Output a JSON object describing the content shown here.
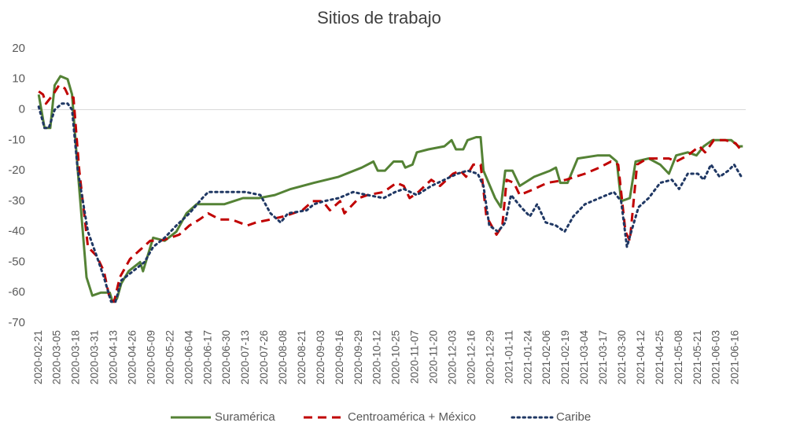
{
  "chart_data": {
    "type": "line",
    "title": "Sitios de trabajo",
    "xlim": [
      "2020-02-16",
      "2021-06-23"
    ],
    "ylim": [
      -70,
      20
    ],
    "yticks": [
      -70,
      -60,
      -50,
      -40,
      -30,
      -20,
      -10,
      0,
      10,
      20
    ],
    "xticks": [
      "2020-02-21",
      "2020-03-05",
      "2020-03-18",
      "2020-03-31",
      "2020-04-13",
      "2020-04-26",
      "2020-05-09",
      "2020-05-22",
      "2020-06-04",
      "2020-06-17",
      "2020-06-30",
      "2020-07-13",
      "2020-07-26",
      "2020-08-08",
      "2020-08-21",
      "2020-09-03",
      "2020-09-16",
      "2020-09-29",
      "2020-10-12",
      "2020-10-25",
      "2020-11-07",
      "2020-11-20",
      "2020-12-03",
      "2020-12-16",
      "2020-12-29",
      "2021-01-11",
      "2021-01-24",
      "2021-02-06",
      "2021-02-19",
      "2021-03-04",
      "2021-03-17",
      "2021-03-30",
      "2021-04-12",
      "2021-04-25",
      "2021-05-08",
      "2021-05-21",
      "2021-06-03",
      "2021-06-16"
    ],
    "legend": "bottom",
    "series": [
      {
        "name": "Suramérica",
        "color": "#548235",
        "dash": "solid",
        "x": [
          "2020-02-21",
          "2020-02-25",
          "2020-02-29",
          "2020-03-03",
          "2020-03-07",
          "2020-03-12",
          "2020-03-15",
          "2020-03-19",
          "2020-03-25",
          "2020-03-29",
          "2020-04-04",
          "2020-04-10",
          "2020-04-12",
          "2020-04-15",
          "2020-04-18",
          "2020-04-23",
          "2020-05-01",
          "2020-05-03",
          "2020-05-10",
          "2020-05-18",
          "2020-05-26",
          "2020-06-02",
          "2020-06-09",
          "2020-06-17",
          "2020-06-28",
          "2020-07-11",
          "2020-07-22",
          "2020-08-02",
          "2020-08-13",
          "2020-08-29",
          "2020-09-15",
          "2020-10-01",
          "2020-10-09",
          "2020-10-12",
          "2020-10-17",
          "2020-10-23",
          "2020-10-29",
          "2020-10-31",
          "2020-11-05",
          "2020-11-08",
          "2020-11-16",
          "2020-11-27",
          "2020-12-02",
          "2020-12-05",
          "2020-12-10",
          "2020-12-13",
          "2020-12-19",
          "2020-12-22",
          "2020-12-24",
          "2021-01-01",
          "2021-01-05",
          "2021-01-08",
          "2021-01-13",
          "2021-01-18",
          "2021-01-28",
          "2021-02-08",
          "2021-02-12",
          "2021-02-15",
          "2021-02-20",
          "2021-02-27",
          "2021-03-13",
          "2021-03-21",
          "2021-03-26",
          "2021-03-29",
          "2021-04-04",
          "2021-04-08",
          "2021-04-17",
          "2021-04-25",
          "2021-05-01",
          "2021-05-06",
          "2021-05-14",
          "2021-05-20",
          "2021-05-25",
          "2021-05-31",
          "2021-06-08",
          "2021-06-13",
          "2021-06-18",
          "2021-06-21"
        ],
        "values": [
          5,
          -6,
          -6,
          8,
          11,
          10,
          5,
          -20,
          -55,
          -61,
          -60,
          -60,
          -63,
          -62,
          -57,
          -53,
          -50,
          -53,
          -42,
          -43,
          -40,
          -34,
          -31,
          -31,
          -31,
          -29,
          -29,
          -28,
          -26,
          -24,
          -22,
          -19,
          -17,
          -20,
          -20,
          -17,
          -17,
          -19,
          -18,
          -14,
          -13,
          -12,
          -10,
          -13,
          -13,
          -10,
          -9,
          -9,
          -20,
          -29,
          -32,
          -20,
          -20,
          -25,
          -22,
          -20,
          -19,
          -24,
          -24,
          -16,
          -15,
          -15,
          -17,
          -30,
          -29,
          -17,
          -16,
          -18,
          -21,
          -15,
          -14,
          -15,
          -12,
          -10,
          -10,
          -10,
          -12,
          -12
        ]
      },
      {
        "name": "Centroamérica + México",
        "color": "#c00000",
        "dash": "dashed",
        "x": [
          "2020-02-21",
          "2020-02-24",
          "2020-02-26",
          "2020-03-02",
          "2020-03-06",
          "2020-03-10",
          "2020-03-13",
          "2020-03-16",
          "2020-03-20",
          "2020-03-26",
          "2020-04-01",
          "2020-04-06",
          "2020-04-10",
          "2020-04-13",
          "2020-04-17",
          "2020-04-24",
          "2020-05-01",
          "2020-05-08",
          "2020-05-15",
          "2020-05-22",
          "2020-05-28",
          "2020-06-04",
          "2020-06-11",
          "2020-06-17",
          "2020-06-25",
          "2020-07-03",
          "2020-07-14",
          "2020-07-20",
          "2020-07-30",
          "2020-08-08",
          "2020-08-21",
          "2020-08-28",
          "2020-09-04",
          "2020-09-09",
          "2020-09-16",
          "2020-09-19",
          "2020-09-29",
          "2020-10-05",
          "2020-10-16",
          "2020-10-25",
          "2020-10-30",
          "2020-11-03",
          "2020-11-09",
          "2020-11-18",
          "2020-11-24",
          "2020-12-03",
          "2020-12-08",
          "2020-12-12",
          "2020-12-17",
          "2020-12-22",
          "2020-12-26",
          "2021-01-02",
          "2021-01-06",
          "2021-01-09",
          "2021-01-14",
          "2021-01-18",
          "2021-01-28",
          "2021-02-06",
          "2021-02-19",
          "2021-03-04",
          "2021-03-14",
          "2021-03-22",
          "2021-03-27",
          "2021-04-01",
          "2021-04-04",
          "2021-04-09",
          "2021-04-16",
          "2021-04-25",
          "2021-05-01",
          "2021-05-06",
          "2021-05-14",
          "2021-05-22",
          "2021-05-26",
          "2021-06-01",
          "2021-06-09",
          "2021-06-16",
          "2021-06-21"
        ],
        "values": [
          6,
          5,
          2,
          5,
          8,
          7,
          4,
          4,
          -20,
          -45,
          -48,
          -53,
          -62,
          -63,
          -55,
          -49,
          -46,
          -43,
          -43,
          -42,
          -41,
          -38,
          -36,
          -34,
          -36,
          -36,
          -38,
          -37,
          -36,
          -35,
          -33,
          -30,
          -30,
          -33,
          -30,
          -34,
          -29,
          -28,
          -27,
          -24,
          -25,
          -29,
          -27,
          -23,
          -25,
          -21,
          -20,
          -22,
          -18,
          -18,
          -35,
          -41,
          -38,
          -23,
          -24,
          -28,
          -26,
          -24,
          -23,
          -21,
          -19,
          -17,
          -18,
          -40,
          -43,
          -18,
          -16,
          -16,
          -16,
          -17,
          -15,
          -12,
          -14,
          -10,
          -10,
          -11,
          -14
        ]
      },
      {
        "name": "Caribe",
        "color": "#203864",
        "dash": "dotted",
        "x": [
          "2020-02-21",
          "2020-02-25",
          "2020-02-28",
          "2020-03-03",
          "2020-03-08",
          "2020-03-12",
          "2020-03-15",
          "2020-03-19",
          "2020-03-26",
          "2020-04-01",
          "2020-04-06",
          "2020-04-11",
          "2020-04-14",
          "2020-04-18",
          "2020-04-26",
          "2020-05-04",
          "2020-05-10",
          "2020-05-18",
          "2020-05-26",
          "2020-06-04",
          "2020-06-13",
          "2020-06-17",
          "2020-07-01",
          "2020-07-13",
          "2020-07-23",
          "2020-07-30",
          "2020-08-06",
          "2020-08-11",
          "2020-08-24",
          "2020-08-29",
          "2020-09-05",
          "2020-09-15",
          "2020-09-25",
          "2020-10-05",
          "2020-10-16",
          "2020-10-24",
          "2020-10-30",
          "2020-11-08",
          "2020-11-18",
          "2020-11-27",
          "2020-12-06",
          "2020-12-13",
          "2020-12-20",
          "2020-12-24",
          "2020-12-28",
          "2021-01-03",
          "2021-01-08",
          "2021-01-12",
          "2021-01-19",
          "2021-01-25",
          "2021-01-30",
          "2021-02-05",
          "2021-02-12",
          "2021-02-18",
          "2021-02-24",
          "2021-03-04",
          "2021-03-14",
          "2021-03-24",
          "2021-03-29",
          "2021-04-02",
          "2021-04-05",
          "2021-04-10",
          "2021-04-17",
          "2021-04-25",
          "2021-05-03",
          "2021-05-08",
          "2021-05-14",
          "2021-05-21",
          "2021-05-25",
          "2021-05-30",
          "2021-06-05",
          "2021-06-11",
          "2021-06-15",
          "2021-06-20"
        ],
        "values": [
          1,
          -6,
          -6,
          0,
          2,
          2,
          0,
          -20,
          -40,
          -48,
          -55,
          -63,
          -63,
          -56,
          -53,
          -50,
          -45,
          -42,
          -38,
          -34,
          -29,
          -27,
          -27,
          -27,
          -28,
          -34,
          -37,
          -34,
          -33,
          -31,
          -30,
          -29,
          -27,
          -28,
          -29,
          -27,
          -26,
          -28,
          -25,
          -23,
          -21,
          -20,
          -21,
          -25,
          -38,
          -40,
          -37,
          -28,
          -32,
          -35,
          -31,
          -37,
          -38,
          -40,
          -35,
          -31,
          -29,
          -27,
          -30,
          -45,
          -40,
          -32,
          -29,
          -24,
          -23,
          -26,
          -21,
          -21,
          -23,
          -18,
          -22,
          -20,
          -18,
          -22
        ]
      }
    ]
  }
}
